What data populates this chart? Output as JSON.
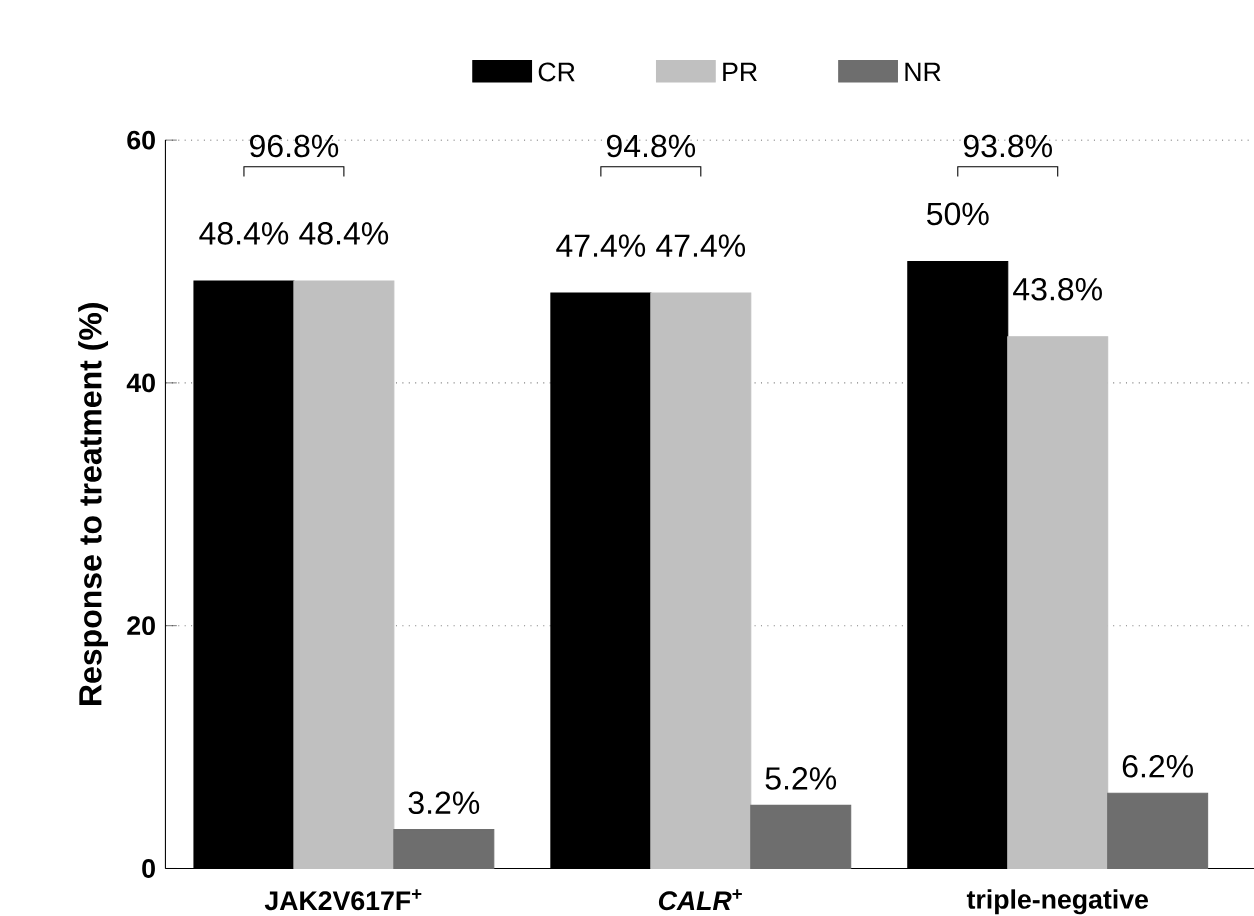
{
  "chart_data": {
    "type": "bar",
    "ylabel": "Response to treatment (%)",
    "categories": [
      "JAK2V617F$^{+}$",
      "*CALR*$^{+}$",
      "triple-negative"
    ],
    "series": [
      {
        "name": "CR",
        "color": "#000000",
        "values": [
          48.4,
          47.4,
          50
        ],
        "value_labels": [
          "48.4%",
          "47.4%",
          "50%"
        ]
      },
      {
        "name": "PR",
        "color": "#c0c0c0",
        "values": [
          48.4,
          47.4,
          43.8
        ],
        "value_labels": [
          "48.4%",
          "47.4%",
          "43.8%"
        ]
      },
      {
        "name": "NR",
        "color": "#6e6e6e",
        "values": [
          3.2,
          5.2,
          6.2
        ],
        "value_labels": [
          "3.2%",
          "5.2%",
          "6.2%"
        ]
      }
    ],
    "annotations": [
      "96.8%",
      "94.8%",
      "93.8%"
    ],
    "ylim": [
      0,
      60
    ],
    "yticks": [
      0,
      20,
      40,
      60
    ],
    "grid": "y",
    "legend": "top"
  }
}
